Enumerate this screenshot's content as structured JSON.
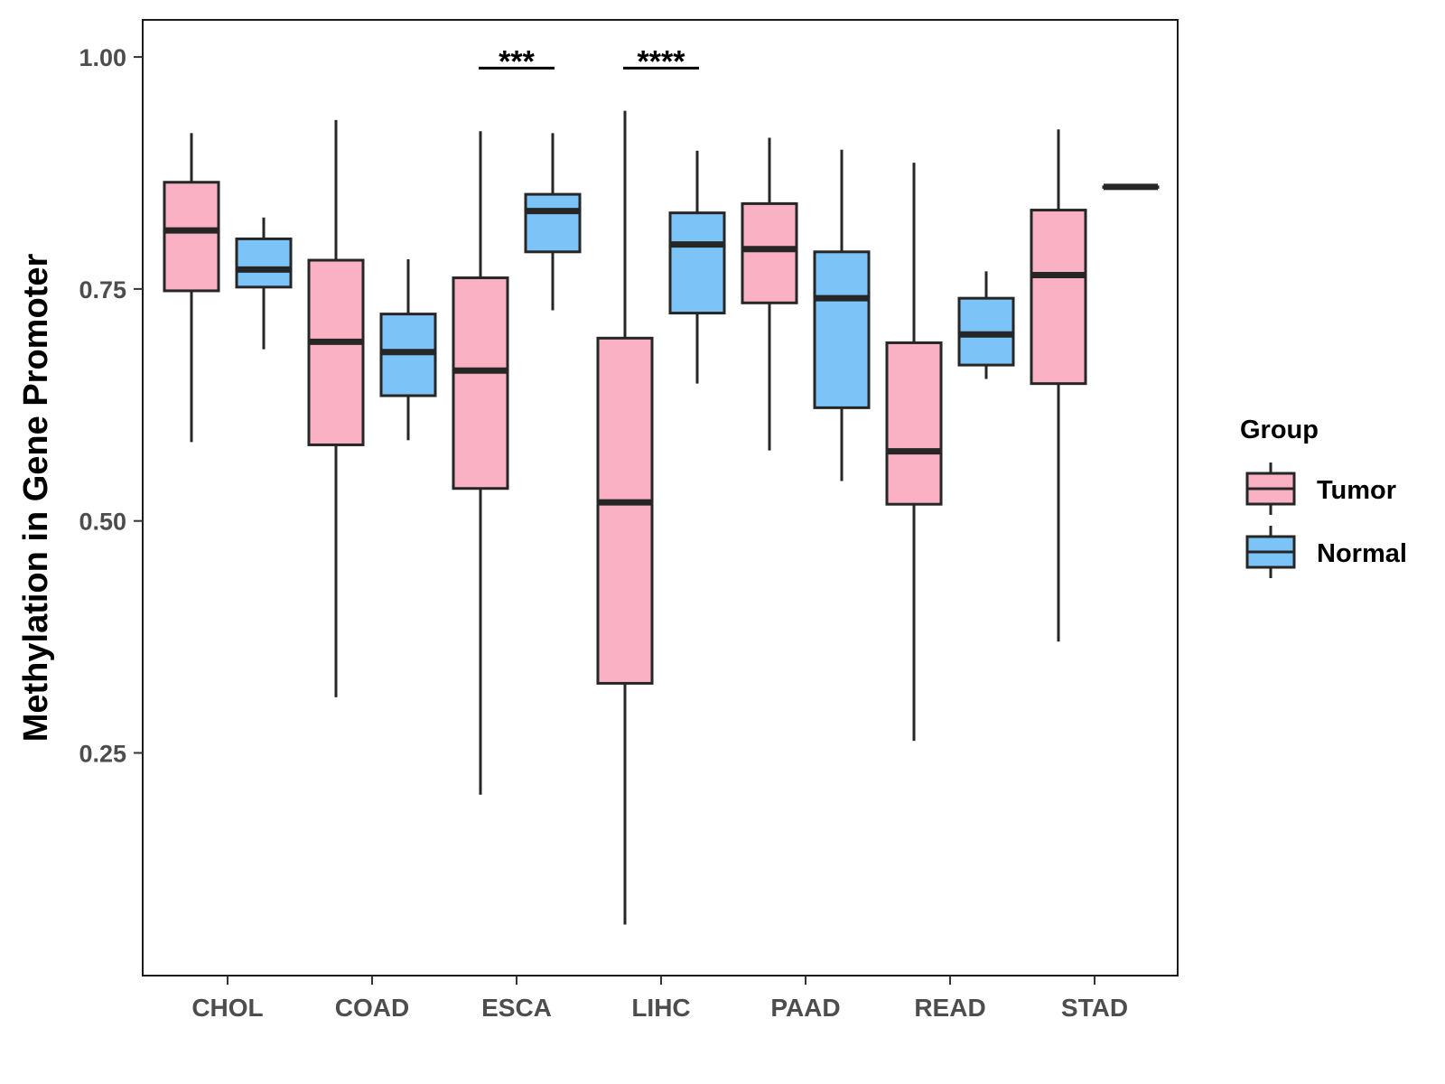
{
  "chart_data": {
    "type": "boxplot",
    "ylabel": "Methylation in Gene Promoter",
    "xlabel": "",
    "ylim": [
      0.01,
      1.04
    ],
    "yticks": [
      0.25,
      0.5,
      0.75,
      1.0
    ],
    "ytick_labels": [
      "0.25",
      "0.50",
      "0.75",
      "1.00"
    ],
    "categories": [
      "CHOL",
      "COAD",
      "ESCA",
      "LIHC",
      "PAAD",
      "READ",
      "STAD"
    ],
    "legend": {
      "title": "Group",
      "position": "right",
      "entries": [
        "Tumor",
        "Normal"
      ]
    },
    "colors": {
      "Tumor": "#fbb1c4",
      "Normal": "#7cc3f8",
      "outline": "#262626"
    },
    "series": [
      {
        "name": "Tumor",
        "boxes": [
          {
            "min": 0.585,
            "q1": 0.748,
            "median": 0.813,
            "q3": 0.865,
            "max": 0.918
          },
          {
            "min": 0.31,
            "q1": 0.582,
            "median": 0.693,
            "q3": 0.781,
            "max": 0.932
          },
          {
            "min": 0.205,
            "q1": 0.535,
            "median": 0.662,
            "q3": 0.762,
            "max": 0.92
          },
          {
            "min": 0.065,
            "q1": 0.325,
            "median": 0.52,
            "q3": 0.697,
            "max": 0.942
          },
          {
            "min": 0.576,
            "q1": 0.735,
            "median": 0.793,
            "q3": 0.842,
            "max": 0.913
          },
          {
            "min": 0.263,
            "q1": 0.518,
            "median": 0.575,
            "q3": 0.692,
            "max": 0.886
          },
          {
            "min": 0.37,
            "q1": 0.648,
            "median": 0.765,
            "q3": 0.835,
            "max": 0.922
          }
        ]
      },
      {
        "name": "Normal",
        "boxes": [
          {
            "min": 0.685,
            "q1": 0.752,
            "median": 0.771,
            "q3": 0.804,
            "max": 0.827
          },
          {
            "min": 0.587,
            "q1": 0.635,
            "median": 0.682,
            "q3": 0.723,
            "max": 0.782
          },
          {
            "min": 0.727,
            "q1": 0.79,
            "median": 0.834,
            "q3": 0.852,
            "max": 0.918
          },
          {
            "min": 0.648,
            "q1": 0.724,
            "median": 0.798,
            "q3": 0.832,
            "max": 0.899
          },
          {
            "min": 0.543,
            "q1": 0.622,
            "median": 0.74,
            "q3": 0.79,
            "max": 0.9
          },
          {
            "min": 0.653,
            "q1": 0.668,
            "median": 0.701,
            "q3": 0.74,
            "max": 0.769
          },
          {
            "min": 0.86,
            "q1": 0.86,
            "median": 0.86,
            "q3": 0.86,
            "max": 0.86
          }
        ]
      }
    ],
    "annotations": [
      {
        "category": "ESCA",
        "label": "***",
        "y": 0.988
      },
      {
        "category": "LIHC",
        "label": "****",
        "y": 0.988
      }
    ]
  }
}
